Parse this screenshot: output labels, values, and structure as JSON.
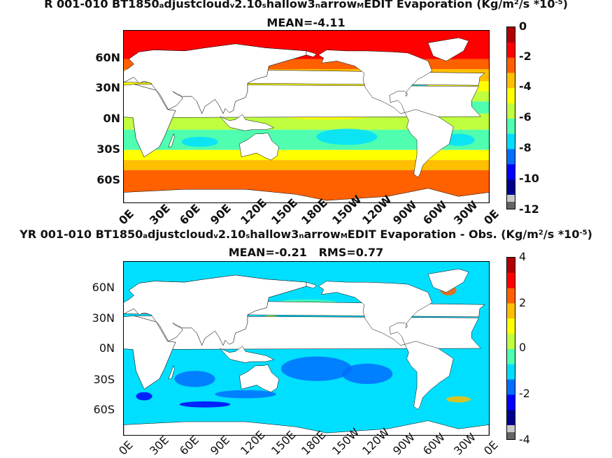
{
  "panels": [
    {
      "title_parts": {
        "a": "R 001-010 BT1850",
        "b": "a",
        "c": "djustcloud",
        "d": "v",
        "e": "2.10",
        "f": "s",
        "g": "hallow3",
        "h": "n",
        "i": "arrow",
        "j": "M",
        "k": "EDIT  Evaporation (Kg/m",
        "l": "2",
        "m": "/s *10",
        "n": "-5",
        "o": ")"
      },
      "stats": "MEAN=-4.11",
      "y_ticks": [
        "60N",
        "30N",
        "0N",
        "30S",
        "60S"
      ],
      "x_ticks": [
        "0E",
        "30E",
        "60E",
        "90E",
        "120E",
        "150E",
        "180E",
        "150W",
        "120W",
        "90W",
        "60W",
        "30W",
        "0E"
      ],
      "colorbar_ticks": [
        "0",
        "-2",
        "-4",
        "-6",
        "-8",
        "-10",
        "-12"
      ],
      "colorbar_range": [
        -12,
        0
      ],
      "field": "evaporation"
    },
    {
      "title_parts": {
        "a": "YR 001-010 BT1850",
        "b": "a",
        "c": "djustcloud",
        "d": "v",
        "e": "2.10",
        "f": "s",
        "g": "hallow3",
        "h": "n",
        "i": "arrow",
        "j": "M",
        "k": "EDIT Evaporation - Obs. (Kg/m",
        "l": "2",
        "m": "/s *10",
        "n": "-5",
        "o": ")"
      },
      "stats": "MEAN=-0.21   RMS=0.77",
      "y_ticks": [
        "60N",
        "30N",
        "0N",
        "30S",
        "60S"
      ],
      "x_ticks": [
        "0E",
        "30E",
        "60E",
        "90E",
        "120E",
        "150E",
        "180E",
        "150W",
        "120W",
        "90W",
        "60W",
        "30W",
        "0E"
      ],
      "colorbar_ticks": [
        "4",
        "2",
        "0",
        "-2",
        "-4"
      ],
      "colorbar_range": [
        -4,
        4
      ],
      "field": "difference"
    }
  ],
  "colors": {
    "jet": [
      "#00008f",
      "#0000ff",
      "#006fff",
      "#00dfff",
      "#4fffaf",
      "#bfff3f",
      "#ffff00",
      "#ffbf00",
      "#ff6000",
      "#ff0000",
      "#af0000"
    ],
    "land": "#ffffff",
    "outline": "#000000"
  }
}
